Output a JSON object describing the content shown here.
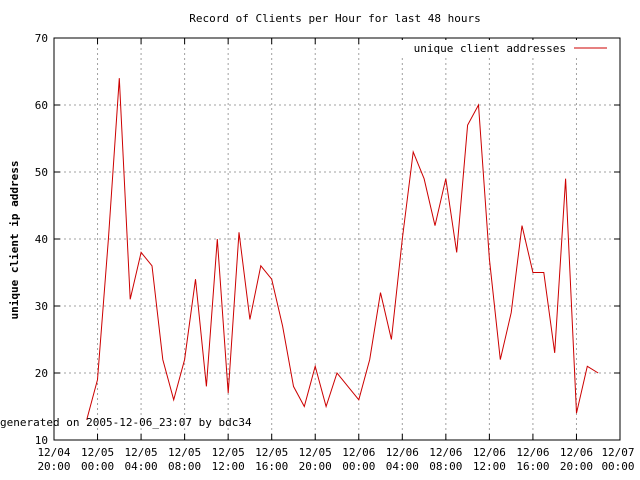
{
  "chart_data": {
    "type": "line",
    "title": "Record of Clients per Hour for last 48 hours",
    "xlabel": "",
    "ylabel": "unique client ip address",
    "ylim": [
      10,
      70
    ],
    "yticks": [
      10,
      20,
      30,
      40,
      50,
      60,
      70
    ],
    "grid": true,
    "legend_position": "top-right",
    "xticks": [
      {
        "line1": "12/04",
        "line2": "20:00",
        "hour": 0
      },
      {
        "line1": "12/05",
        "line2": "00:00",
        "hour": 4
      },
      {
        "line1": "12/05",
        "line2": "04:00",
        "hour": 8
      },
      {
        "line1": "12/05",
        "line2": "08:00",
        "hour": 12
      },
      {
        "line1": "12/05",
        "line2": "12:00",
        "hour": 16
      },
      {
        "line1": "12/05",
        "line2": "16:00",
        "hour": 20
      },
      {
        "line1": "12/05",
        "line2": "20:00",
        "hour": 24
      },
      {
        "line1": "12/06",
        "line2": "00:00",
        "hour": 28
      },
      {
        "line1": "12/06",
        "line2": "04:00",
        "hour": 32
      },
      {
        "line1": "12/06",
        "line2": "08:00",
        "hour": 36
      },
      {
        "line1": "12/06",
        "line2": "12:00",
        "hour": 40
      },
      {
        "line1": "12/06",
        "line2": "16:00",
        "hour": 44
      },
      {
        "line1": "12/06",
        "line2": "20:00",
        "hour": 48
      },
      {
        "line1": "12/07",
        "line2": "00:00",
        "hour": 52
      }
    ],
    "series": [
      {
        "name": "unique client addresses",
        "color": "#cc0000",
        "x": [
          3,
          4,
          5,
          6,
          7,
          8,
          9,
          10,
          11,
          12,
          13,
          14,
          15,
          16,
          17,
          18,
          19,
          20,
          21,
          22,
          23,
          24,
          25,
          26,
          27,
          28,
          29,
          30,
          31,
          32,
          33,
          34,
          35,
          36,
          37,
          38,
          39,
          40,
          41,
          42,
          43,
          44,
          45,
          46,
          47,
          48,
          49,
          50
        ],
        "values": [
          13,
          19,
          40,
          64,
          31,
          38,
          36,
          22,
          16,
          22,
          34,
          18,
          40,
          17,
          41,
          28,
          36,
          34,
          27,
          18,
          15,
          21,
          15,
          20,
          18,
          16,
          22,
          32,
          25,
          40,
          53,
          49,
          42,
          49,
          38,
          57,
          60,
          37,
          22,
          29,
          42,
          35,
          35,
          23,
          49,
          14,
          21,
          20
        ]
      }
    ]
  },
  "footer_note": "generated on 2005-12-06_23:07 by bdc34"
}
